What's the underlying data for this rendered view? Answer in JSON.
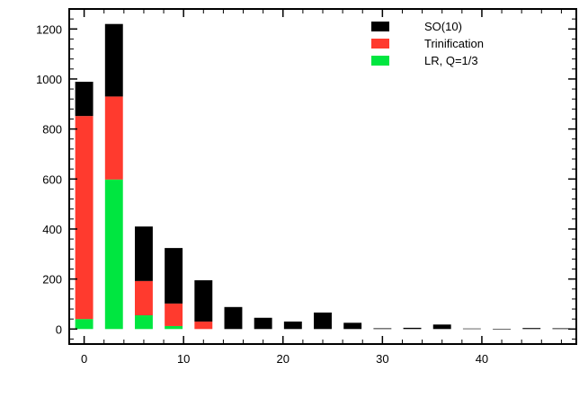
{
  "chart_data": {
    "type": "bar",
    "stacked": true,
    "x": [
      0,
      3,
      6,
      9,
      12,
      15,
      18,
      21,
      24,
      27,
      30,
      33,
      36,
      39,
      42,
      45,
      48
    ],
    "xlim": [
      -1.5,
      49.5
    ],
    "ylim": [
      -60,
      1280
    ],
    "x_ticks": [
      0,
      10,
      20,
      30,
      40
    ],
    "y_ticks": [
      0,
      200,
      400,
      600,
      800,
      1000,
      1200
    ],
    "x_tick_labels": [
      "0",
      "10",
      "20",
      "30",
      "40"
    ],
    "y_tick_labels": [
      "0",
      "200",
      "400",
      "600",
      "800",
      "1000",
      "1200"
    ],
    "grid": false,
    "legend_position": "top-right",
    "series": [
      {
        "name": "LR, Q=1/3",
        "color": "#00e640",
        "values": [
          40,
          598,
          55,
          12,
          0,
          0,
          0,
          0,
          0,
          0,
          0,
          0,
          0,
          0,
          0,
          0,
          0
        ]
      },
      {
        "name": "Trinification",
        "color": "#ff3a2e",
        "values": [
          812,
          332,
          137,
          90,
          30,
          0,
          0,
          0,
          0,
          0,
          0,
          0,
          0,
          0,
          0,
          0,
          0
        ]
      },
      {
        "name": "SO(10)",
        "color": "#000000",
        "values": [
          137,
          290,
          218,
          222,
          165,
          88,
          45,
          30,
          66,
          25,
          3,
          5,
          18,
          2,
          1,
          4,
          3
        ]
      }
    ],
    "legend_order": [
      "SO(10)",
      "Trinification",
      "LR, Q=1/3"
    ]
  }
}
